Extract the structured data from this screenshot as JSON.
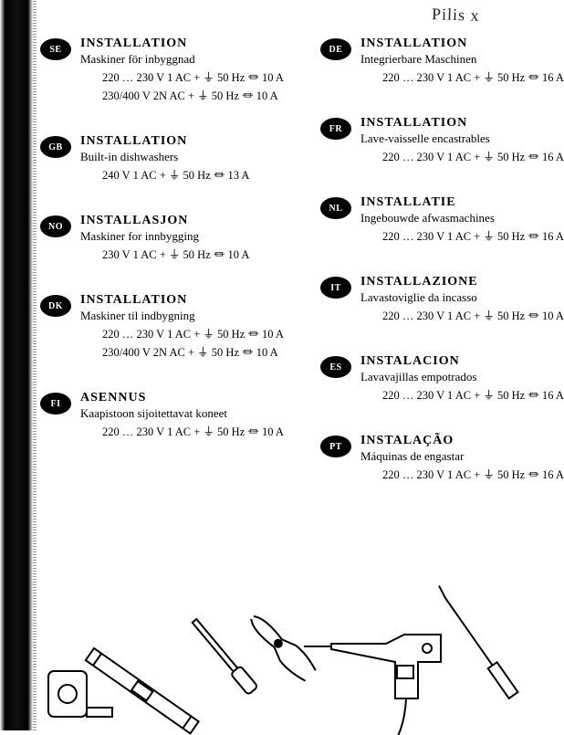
{
  "handwriting": "Pilis x",
  "left_column": [
    {
      "code": "SE",
      "title": "INSTALLATION",
      "sub": "Maskiner för inbyggnad",
      "specs": [
        "220 … 230 V  1 AC + ⏚ 50 Hz ⏛ 10 A",
        "230/400 V  2N AC + ⏚ 50 Hz ⏛ 10 A"
      ]
    },
    {
      "code": "GB",
      "title": "INSTALLATION",
      "sub": "Built-in dishwashers",
      "specs": [
        "240 V  1 AC + ⏚ 50 Hz ⏛ 13 A"
      ]
    },
    {
      "code": "NO",
      "title": "INSTALLASJON",
      "sub": "Maskiner for innbygging",
      "specs": [
        "230 V  1 AC + ⏚ 50 Hz ⏛ 10 A"
      ]
    },
    {
      "code": "DK",
      "title": "INSTALLATION",
      "sub": "Maskiner til indbygning",
      "specs": [
        "220 … 230 V  1 AC + ⏚ 50 Hz ⏛ 10 A",
        "230/400 V  2N AC + ⏚ 50 Hz ⏛ 10 A"
      ]
    },
    {
      "code": "FI",
      "title": "ASENNUS",
      "sub": "Kaapistoon sijoitettavat koneet",
      "specs": [
        "220 … 230 V  1 AC + ⏚ 50 Hz ⏛ 10 A"
      ]
    }
  ],
  "right_column": [
    {
      "code": "DE",
      "title": "INSTALLATION",
      "sub": "Integrierbare Maschinen",
      "specs": [
        "220 … 230 V  1 AC + ⏚ 50 Hz ⏛ 16 A"
      ]
    },
    {
      "code": "FR",
      "title": "INSTALLATION",
      "sub": "Lave-vaisselle encastrables",
      "specs": [
        "220 … 230 V  1 AC + ⏚ 50 Hz ⏛ 16 A"
      ]
    },
    {
      "code": "NL",
      "title": "INSTALLATIE",
      "sub": "Ingebouwde afwasmachines",
      "specs": [
        "220 … 230 V  1 AC + ⏚ 50 Hz ⏛ 16 A"
      ]
    },
    {
      "code": "IT",
      "title": "INSTALLAZIONE",
      "sub": "Lavastoviglie da incasso",
      "specs": [
        "220 … 230 V  1 AC + ⏚ 50 Hz ⏛ 10 A"
      ]
    },
    {
      "code": "ES",
      "title": "INSTALACION",
      "sub": "Lavavajillas empotrados",
      "specs": [
        "220 … 230 V  1 AC + ⏚ 50 Hz ⏛ 16 A"
      ]
    },
    {
      "code": "PT",
      "title": "INSTALAÇÃO",
      "sub": "Máquinas de engastar",
      "specs": [
        "220 … 230 V  1 AC + ⏚ 50 Hz ⏛ 16 A"
      ]
    }
  ]
}
